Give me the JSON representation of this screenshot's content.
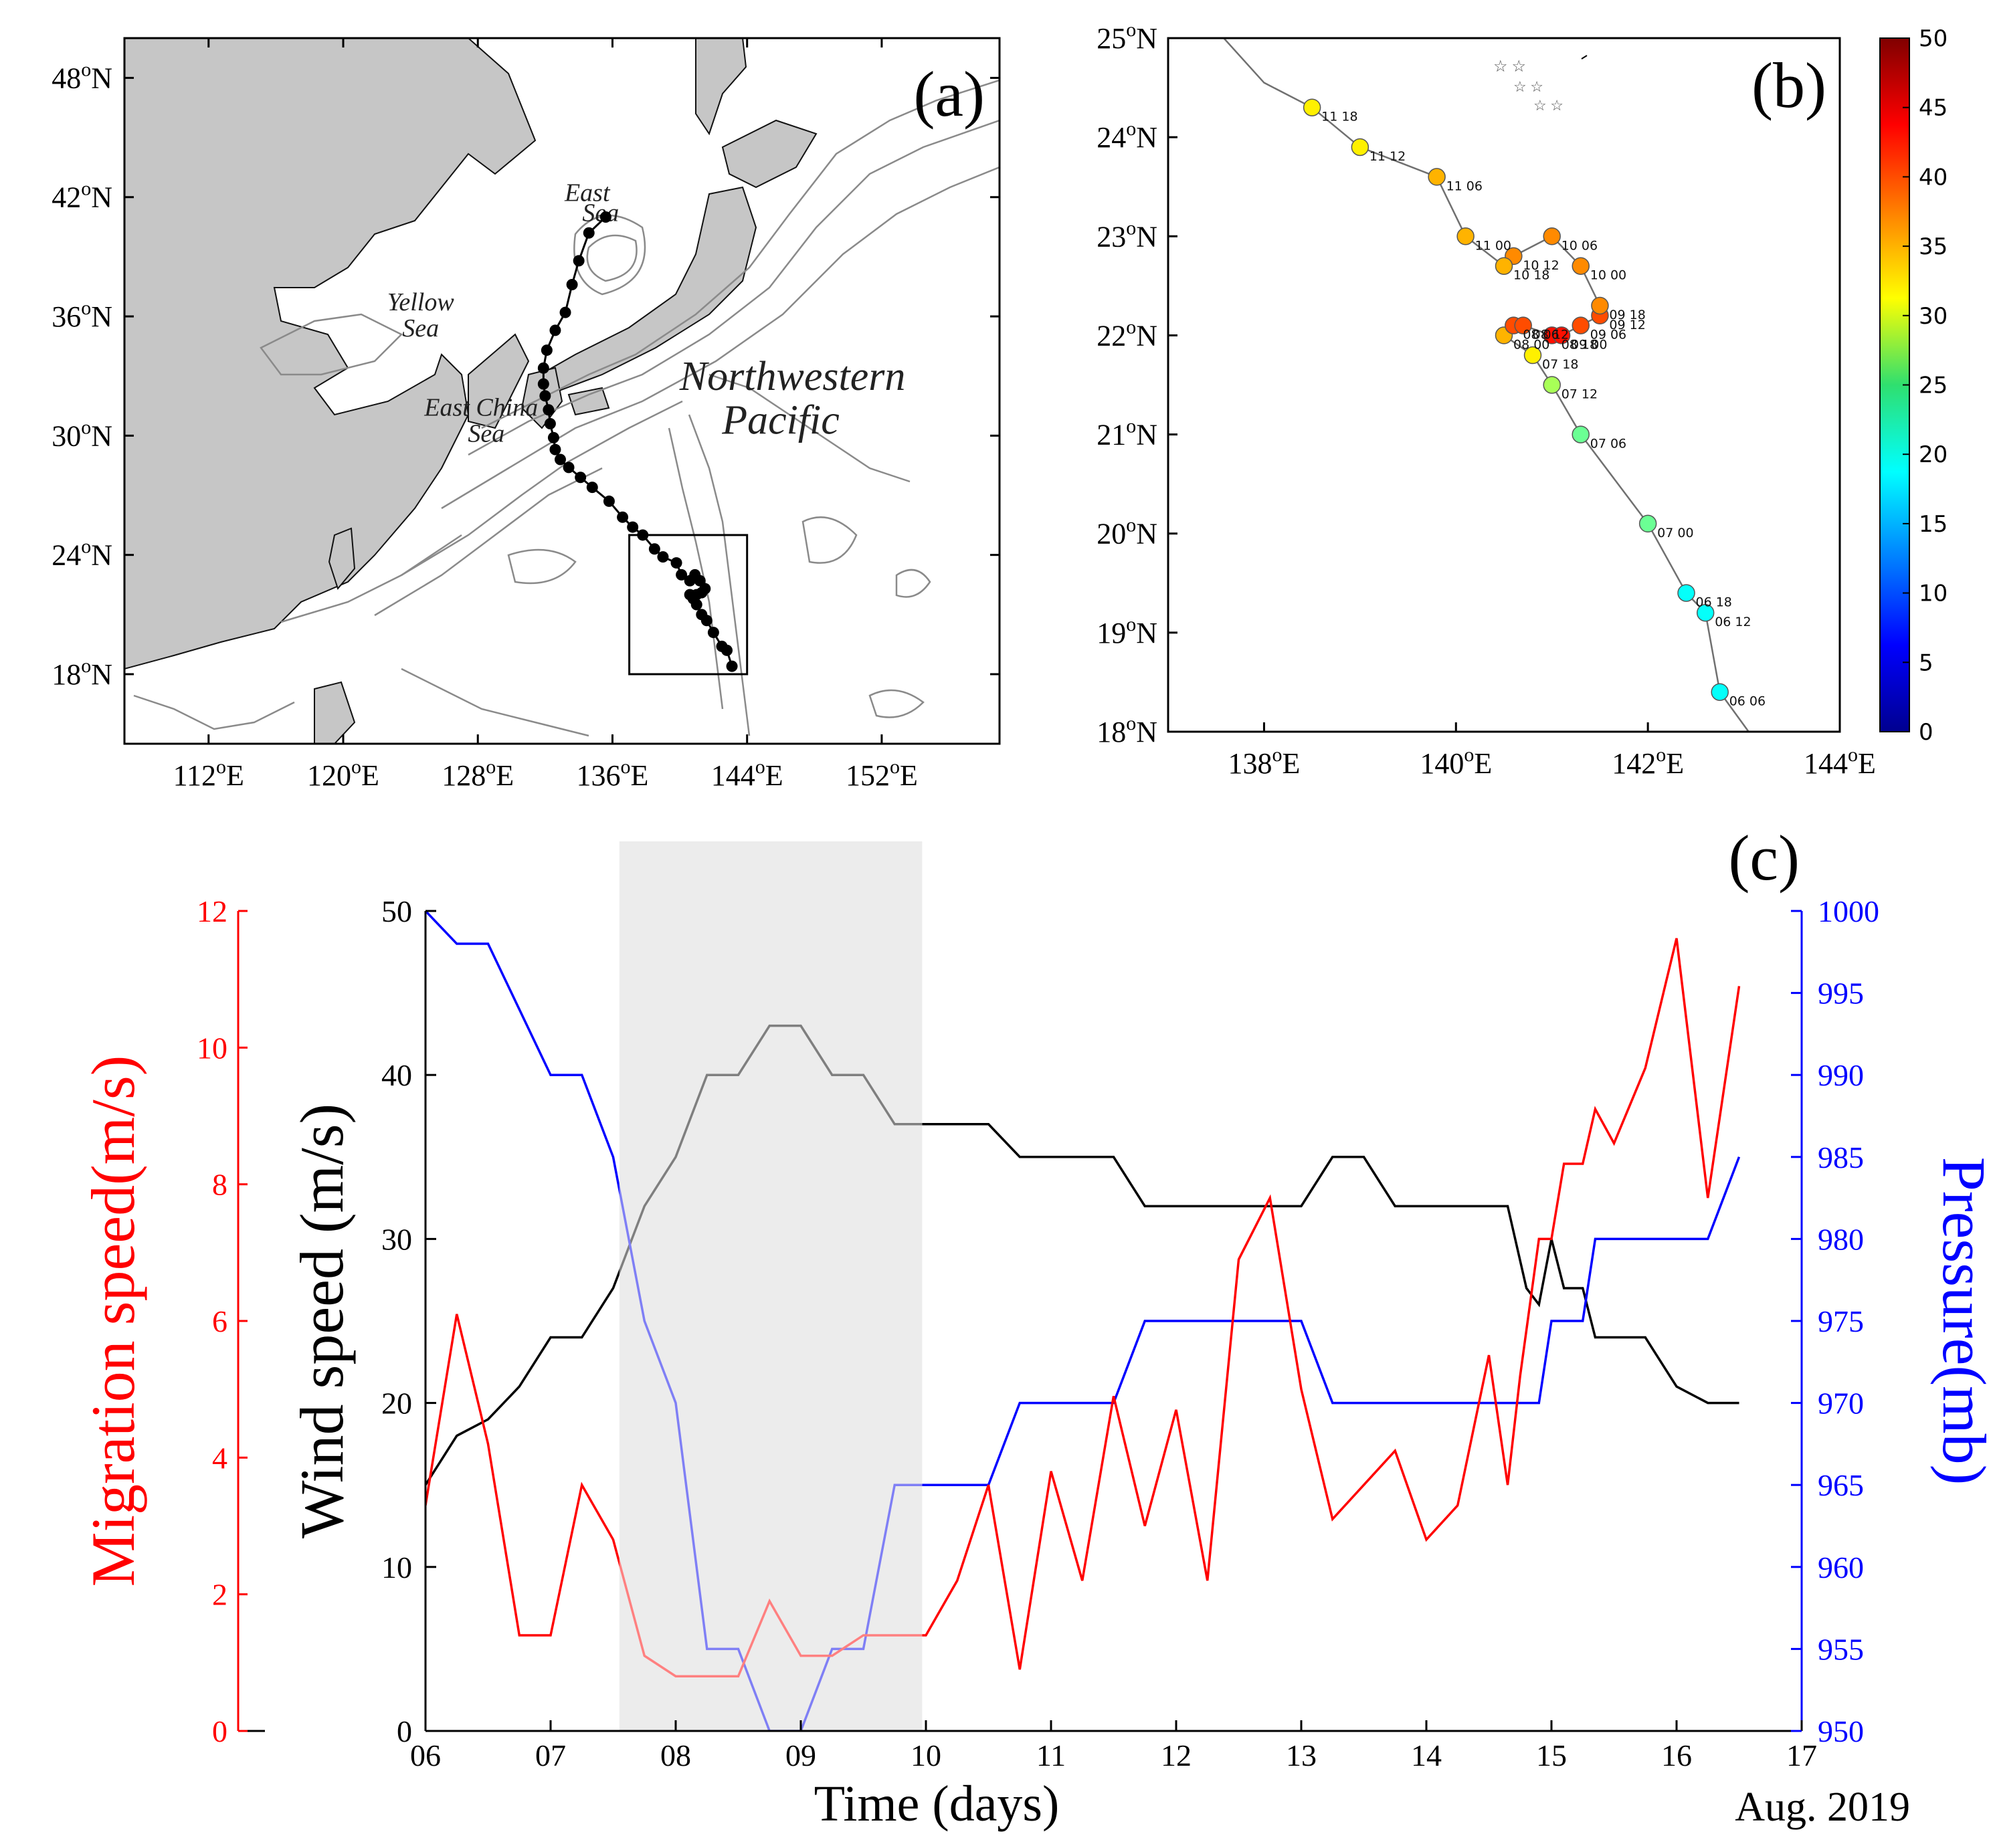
{
  "chart_data": [
    {
      "id": "a",
      "type": "map",
      "panel_label": "(a)",
      "lon_ticks": [
        "112°E",
        "120°E",
        "128°E",
        "136°E",
        "144°E",
        "152°E"
      ],
      "lat_ticks": [
        "48°N",
        "42°N",
        "36°N",
        "30°N",
        "24°N",
        "18°N"
      ],
      "lon_range": [
        107,
        159
      ],
      "lat_range": [
        14.5,
        50
      ],
      "region_labels": [
        {
          "text": "East",
          "lon": 134.5,
          "lat": 41.8
        },
        {
          "text": "Sea",
          "lon": 135.3,
          "lat": 40.8
        },
        {
          "text": "Yellow",
          "lon": 124.6,
          "lat": 36.3
        },
        {
          "text": "Sea",
          "lon": 124.6,
          "lat": 35.0
        },
        {
          "text": "East China",
          "lon": 128.2,
          "lat": 31.0
        },
        {
          "text": "Sea",
          "lon": 128.5,
          "lat": 29.7
        },
        {
          "text": "Northwestern",
          "lon": 146.7,
          "lat": 32.3
        },
        {
          "text": "Pacific",
          "lon": 146.0,
          "lat": 30.1
        }
      ],
      "track": [
        [
          143.1,
          18.4
        ],
        [
          142.8,
          19.2
        ],
        [
          142.5,
          19.4
        ],
        [
          142.0,
          20.1
        ],
        [
          141.6,
          20.7
        ],
        [
          141.3,
          21.0
        ],
        [
          141.0,
          21.5
        ],
        [
          140.8,
          21.8
        ],
        [
          140.6,
          22.0
        ],
        [
          141.0,
          22.0
        ],
        [
          141.3,
          22.1
        ],
        [
          141.5,
          22.3
        ],
        [
          141.2,
          22.7
        ],
        [
          140.9,
          23.0
        ],
        [
          140.6,
          22.7
        ],
        [
          140.1,
          23.0
        ],
        [
          139.8,
          23.6
        ],
        [
          139.0,
          23.9
        ],
        [
          138.5,
          24.3
        ],
        [
          137.8,
          25.0
        ],
        [
          137.2,
          25.4
        ],
        [
          136.6,
          25.9
        ],
        [
          135.8,
          26.7
        ],
        [
          134.8,
          27.4
        ],
        [
          134.1,
          27.9
        ],
        [
          133.4,
          28.4
        ],
        [
          132.9,
          28.8
        ],
        [
          132.6,
          29.3
        ],
        [
          132.5,
          29.9
        ],
        [
          132.3,
          30.6
        ],
        [
          132.2,
          31.3
        ],
        [
          132.0,
          32.0
        ],
        [
          131.9,
          32.6
        ],
        [
          131.9,
          33.4
        ],
        [
          132.1,
          34.3
        ],
        [
          132.6,
          35.3
        ],
        [
          133.2,
          36.2
        ],
        [
          133.6,
          37.6
        ],
        [
          134.0,
          38.8
        ],
        [
          134.6,
          40.2
        ],
        [
          135.6,
          41.0
        ]
      ],
      "inset_box": {
        "lon": [
          137,
          144
        ],
        "lat": [
          18,
          25
        ]
      }
    },
    {
      "id": "b",
      "type": "scatter",
      "panel_label": "(b)",
      "lon_ticks": [
        "138°E",
        "140°E",
        "142°E",
        "144°E"
      ],
      "lat_ticks": [
        "25°N",
        "24°N",
        "23°N",
        "22°N",
        "21°N",
        "20°N",
        "19°N",
        "18°N"
      ],
      "lon_range": [
        137,
        144
      ],
      "lat_range": [
        18,
        25
      ],
      "colorbar": {
        "min": 0,
        "max": 50,
        "ticks": [
          "50",
          "45",
          "40",
          "35",
          "30",
          "25",
          "20",
          "15",
          "10",
          "5",
          "0"
        ]
      },
      "points": [
        {
          "lon": 142.75,
          "lat": 18.4,
          "wind": 19,
          "label": "06 06"
        },
        {
          "lon": 142.6,
          "lat": 19.2,
          "wind": 19,
          "label": "06 12"
        },
        {
          "lon": 142.4,
          "lat": 19.4,
          "wind": 19,
          "label": "06 18"
        },
        {
          "lon": 142.0,
          "lat": 20.1,
          "wind": 24,
          "label": "07 00"
        },
        {
          "lon": 141.3,
          "lat": 21.0,
          "wind": 24,
          "label": "07 06"
        },
        {
          "lon": 141.0,
          "lat": 21.5,
          "wind": 27,
          "label": "07 12"
        },
        {
          "lon": 140.8,
          "lat": 21.8,
          "wind": 32,
          "label": "07 18"
        },
        {
          "lon": 140.5,
          "lat": 22.0,
          "wind": 35,
          "label": "08 00"
        },
        {
          "lon": 140.6,
          "lat": 22.1,
          "wind": 40,
          "label": "08 06"
        },
        {
          "lon": 140.7,
          "lat": 22.1,
          "wind": 40,
          "label": "08 12"
        },
        {
          "lon": 141.0,
          "lat": 22.0,
          "wind": 43,
          "label": "08 18"
        },
        {
          "lon": 141.1,
          "lat": 22.0,
          "wind": 43,
          "label": "09 00"
        },
        {
          "lon": 141.3,
          "lat": 22.1,
          "wind": 40,
          "label": "09 06"
        },
        {
          "lon": 141.5,
          "lat": 22.2,
          "wind": 40,
          "label": "09 12"
        },
        {
          "lon": 141.5,
          "lat": 22.3,
          "wind": 37,
          "label": "09 18"
        },
        {
          "lon": 141.3,
          "lat": 22.7,
          "wind": 37,
          "label": "10 00"
        },
        {
          "lon": 141.0,
          "lat": 23.0,
          "wind": 37,
          "label": "10 06"
        },
        {
          "lon": 140.6,
          "lat": 22.8,
          "wind": 37,
          "label": "10 12"
        },
        {
          "lon": 140.5,
          "lat": 22.7,
          "wind": 35,
          "label": "10 18"
        },
        {
          "lon": 140.1,
          "lat": 23.0,
          "wind": 35,
          "label": "11 00"
        },
        {
          "lon": 139.8,
          "lat": 23.6,
          "wind": 35,
          "label": "11 06"
        },
        {
          "lon": 139.0,
          "lat": 23.9,
          "wind": 32,
          "label": "11 12"
        },
        {
          "lon": 138.5,
          "lat": 24.3,
          "wind": 32,
          "label": "11 18"
        }
      ]
    },
    {
      "id": "c",
      "type": "line",
      "panel_label": "(c)",
      "title": "",
      "xlabel": "Time (days)",
      "xlabel_suffix": "Aug. 2019",
      "x_range": [
        6,
        17
      ],
      "x_ticks": [
        "06",
        "07",
        "08",
        "09",
        "10",
        "11",
        "12",
        "13",
        "14",
        "15",
        "16",
        "17"
      ],
      "shaded_interval": [
        7.55,
        9.97
      ],
      "axes": [
        {
          "label": "Migration speed(m/s)",
          "range": [
            0,
            12
          ],
          "ticks": [
            "0",
            "2",
            "4",
            "6",
            "8",
            "10",
            "12"
          ],
          "color": "#ff0000"
        },
        {
          "label": "Wind speed (m/s)",
          "range": [
            0,
            50
          ],
          "ticks": [
            "0",
            "10",
            "20",
            "30",
            "40",
            "50"
          ],
          "color": "#000000"
        },
        {
          "label": "Pressure(mb)",
          "range": [
            950,
            1000
          ],
          "ticks": [
            "950",
            "955",
            "960",
            "965",
            "970",
            "975",
            "980",
            "985",
            "990",
            "995",
            "1000"
          ],
          "color": "#0000ff"
        }
      ],
      "series": [
        {
          "name": "Wind speed",
          "axis": 1,
          "color": "#000000",
          "shade_color": "#7f7f7f",
          "x": [
            6.0,
            6.25,
            6.5,
            6.75,
            7.0,
            7.25,
            7.5,
            7.75,
            8.0,
            8.25,
            8.5,
            8.75,
            9.0,
            9.25,
            9.5,
            9.75,
            10.0,
            10.25,
            10.5,
            10.75,
            11.0,
            11.25,
            11.5,
            11.75,
            12.0,
            12.25,
            12.5,
            12.75,
            13.0,
            13.25,
            13.5,
            13.75,
            14.0,
            14.25,
            14.5,
            14.65,
            14.8,
            14.9,
            15.0,
            15.1,
            15.25,
            15.35,
            15.5,
            15.75,
            16.0,
            16.25,
            16.5
          ],
          "values": [
            15,
            18,
            19,
            21,
            24,
            24,
            27,
            32,
            35,
            40,
            40,
            43,
            43,
            40,
            40,
            37,
            37,
            37,
            37,
            35,
            35,
            35,
            35,
            32,
            32,
            32,
            32,
            32,
            32,
            35,
            35,
            32,
            32,
            32,
            32,
            32,
            27,
            26,
            30,
            27,
            27,
            24,
            24,
            24,
            21,
            20,
            20
          ]
        },
        {
          "name": "Pressure",
          "axis": 2,
          "color": "#0000ff",
          "shade_color": "#7f7ff5",
          "x": [
            6.0,
            6.25,
            6.5,
            6.75,
            7.0,
            7.25,
            7.5,
            7.75,
            8.0,
            8.25,
            8.5,
            8.75,
            9.0,
            9.25,
            9.5,
            9.75,
            10.0,
            10.25,
            10.5,
            10.75,
            11.0,
            11.25,
            11.5,
            11.75,
            12.0,
            12.25,
            12.5,
            12.75,
            13.0,
            13.25,
            13.5,
            13.75,
            14.0,
            14.25,
            14.5,
            14.75,
            14.9,
            15.0,
            15.25,
            15.35,
            15.5,
            15.75,
            16.0,
            16.25,
            16.5
          ],
          "values": [
            1000,
            998,
            998,
            994,
            990,
            990,
            985,
            975,
            970,
            955,
            955,
            950,
            950,
            955,
            955,
            965,
            965,
            965,
            965,
            970,
            970,
            970,
            970,
            975,
            975,
            975,
            975,
            975,
            975,
            970,
            970,
            970,
            970,
            970,
            970,
            970,
            970,
            975,
            975,
            980,
            980,
            980,
            980,
            980,
            985
          ]
        },
        {
          "name": "Migration speed",
          "axis": 0,
          "color": "#ff0000",
          "shade_color": "#ff8080",
          "x": [
            6.0,
            6.25,
            6.5,
            6.75,
            7.0,
            7.25,
            7.5,
            7.75,
            8.0,
            8.25,
            8.5,
            8.75,
            9.0,
            9.25,
            9.5,
            9.75,
            10.0,
            10.25,
            10.5,
            10.75,
            11.0,
            11.25,
            11.5,
            11.75,
            12.0,
            12.25,
            12.5,
            12.75,
            13.0,
            13.25,
            13.5,
            13.75,
            14.0,
            14.25,
            14.5,
            14.65,
            14.75,
            14.9,
            15.0,
            15.1,
            15.25,
            15.35,
            15.5,
            15.75,
            16.0,
            16.25,
            16.5
          ],
          "values": [
            3.3,
            6.1,
            4.2,
            1.4,
            1.4,
            3.6,
            2.8,
            1.1,
            0.8,
            0.8,
            0.8,
            1.9,
            1.1,
            1.1,
            1.4,
            1.4,
            1.4,
            2.2,
            3.6,
            0.9,
            3.8,
            2.2,
            4.9,
            3.0,
            4.7,
            2.2,
            6.9,
            7.8,
            5.0,
            3.1,
            3.6,
            4.1,
            2.8,
            3.3,
            5.5,
            3.6,
            5.2,
            7.2,
            7.2,
            8.3,
            8.3,
            9.1,
            8.6,
            9.7,
            11.6,
            7.8,
            10.9
          ]
        }
      ]
    }
  ]
}
